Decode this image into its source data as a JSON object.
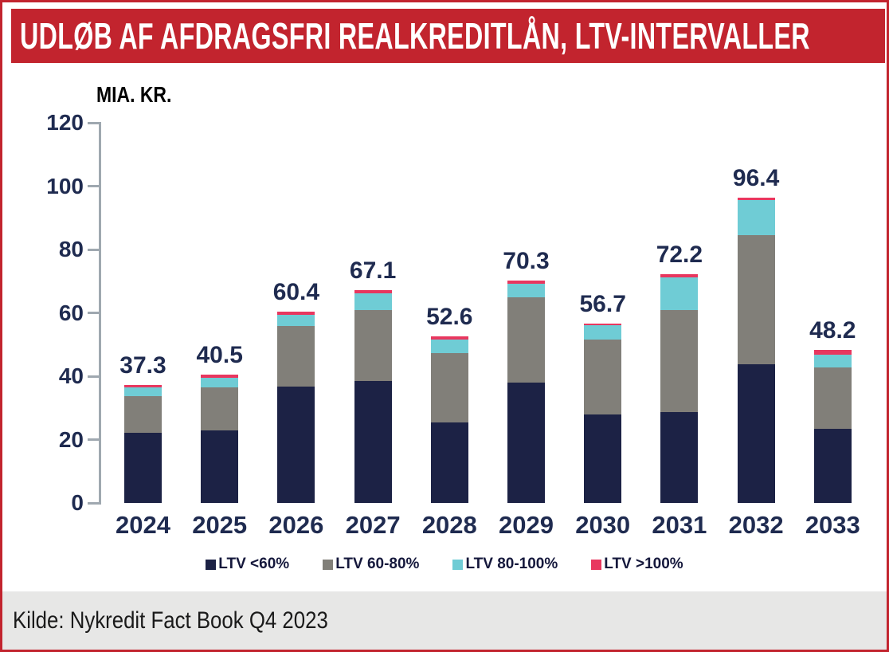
{
  "header": {
    "title": "UDLØB AF AFDRAGSFRI REALKREDITLÅN, LTV-INTERVALLER"
  },
  "chart_data": {
    "type": "bar",
    "stacked": true,
    "title": "UDLØB AF AFDRAGSFRI REALKREDITLÅN, LTV-INTERVALLER",
    "unit_label": "MIA. KR.",
    "xlabel": "",
    "ylabel": "MIA. KR.",
    "ylim": [
      0,
      120
    ],
    "yticks": [
      0,
      20,
      40,
      60,
      80,
      100,
      120
    ],
    "grid": false,
    "legend_position": "bottom",
    "categories": [
      "2024",
      "2025",
      "2026",
      "2027",
      "2028",
      "2029",
      "2030",
      "2031",
      "2032",
      "2033"
    ],
    "totals": [
      37.3,
      40.5,
      60.4,
      67.1,
      52.6,
      70.3,
      56.7,
      72.2,
      96.4,
      48.2
    ],
    "series": [
      {
        "name": "LTV <60%",
        "color": "#1C2245",
        "values": [
          22.1,
          23.0,
          36.8,
          38.4,
          25.3,
          38.0,
          28.0,
          28.6,
          43.7,
          23.5
        ]
      },
      {
        "name": "LTV 60-80%",
        "color": "#817F79",
        "values": [
          11.5,
          13.5,
          19.1,
          22.5,
          21.9,
          26.9,
          23.5,
          32.3,
          40.9,
          19.2
        ]
      },
      {
        "name": "LTV 80-100%",
        "color": "#6FCCD5",
        "values": [
          2.9,
          3.0,
          3.6,
          5.3,
          4.5,
          4.4,
          4.5,
          10.4,
          11.0,
          4.2
        ]
      },
      {
        "name": "LTV >100%",
        "color": "#E8375F",
        "values": [
          0.8,
          1.0,
          0.9,
          0.9,
          0.9,
          1.0,
          0.7,
          0.9,
          0.8,
          1.3
        ]
      }
    ]
  },
  "footer": {
    "source": "Kilde: Nykredit Fact Book Q4 2023"
  },
  "colors": {
    "banner_red": "#C2242E",
    "label_navy": "#1F2B50",
    "axis_gray": "#9FA8B0",
    "footer_gray": "#E7E7E6"
  }
}
